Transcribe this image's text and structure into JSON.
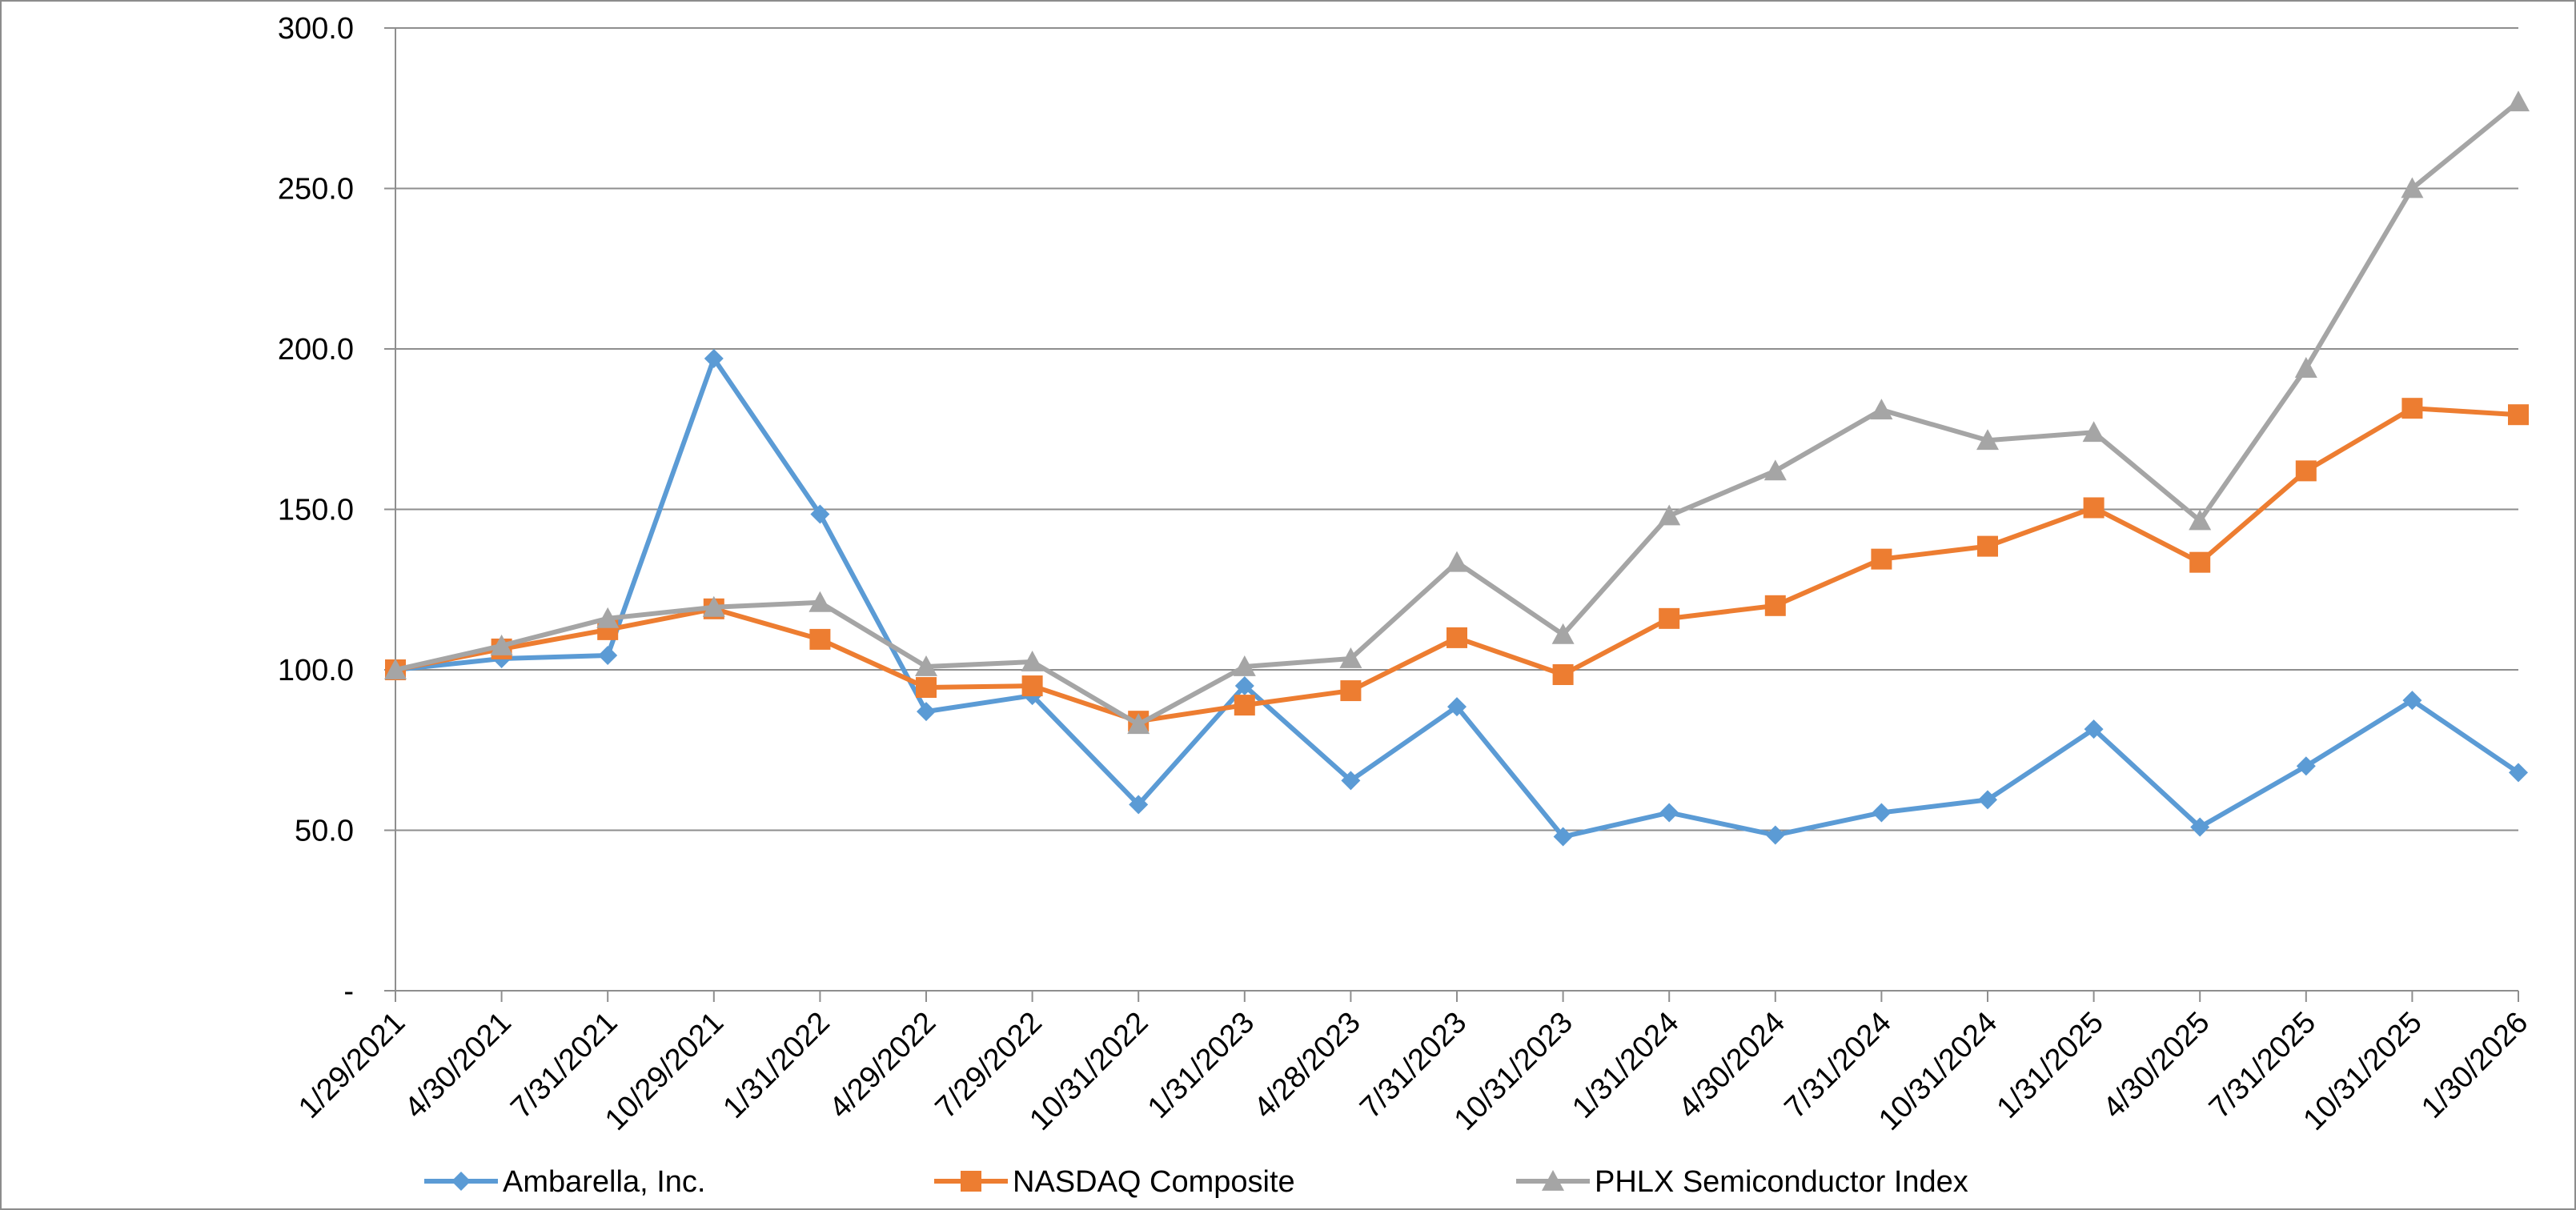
{
  "chart_data": {
    "type": "line",
    "title": "",
    "xlabel": "",
    "ylabel": "",
    "ylim": [
      0,
      300
    ],
    "y_ticks": [
      0,
      50,
      100,
      150,
      200,
      250,
      300
    ],
    "y_tick_labels": [
      "-",
      "50.0",
      "100.0",
      "150.0",
      "200.0",
      "250.0",
      "300.0"
    ],
    "grid": "horizontal",
    "legend_position": "bottom",
    "categories": [
      "1/29/2021",
      "4/30/2021",
      "7/31/2021",
      "10/29/2021",
      "1/31/2022",
      "4/29/2022",
      "7/29/2022",
      "10/31/2022",
      "1/31/2023",
      "4/28/2023",
      "7/31/2023",
      "10/31/2023",
      "1/31/2024",
      "4/30/2024",
      "7/31/2024",
      "10/31/2024",
      "1/31/2025",
      "4/30/2025",
      "7/31/2025",
      "10/31/2025",
      "1/30/2026"
    ],
    "series": [
      {
        "name": "Ambarella, Inc.",
        "color": "#5b9bd5",
        "marker": "diamond",
        "values": [
          100.0,
          103.5,
          104.5,
          197.0,
          148.5,
          87.0,
          92.0,
          58.0,
          95.0,
          65.5,
          88.5,
          48.0,
          55.5,
          48.5,
          55.5,
          59.5,
          81.5,
          51.0,
          70.0,
          90.5,
          68.0
        ]
      },
      {
        "name": "NASDAQ Composite",
        "color": "#ed7d31",
        "marker": "square",
        "values": [
          100.0,
          106.5,
          112.5,
          119.0,
          109.5,
          94.5,
          95.0,
          84.0,
          89.0,
          93.5,
          110.0,
          98.5,
          116.0,
          120.0,
          134.5,
          138.5,
          150.5,
          133.5,
          162.0,
          181.5,
          179.5
        ]
      },
      {
        "name": "PHLX Semiconductor Index",
        "color": "#a5a5a5",
        "marker": "triangle",
        "values": [
          100.0,
          107.5,
          116.0,
          119.5,
          121.0,
          101.0,
          102.5,
          83.0,
          101.0,
          103.5,
          133.5,
          111.0,
          148.0,
          162.0,
          181.0,
          171.5,
          174.0,
          146.5,
          194.0,
          250.0,
          277.0
        ]
      }
    ]
  }
}
